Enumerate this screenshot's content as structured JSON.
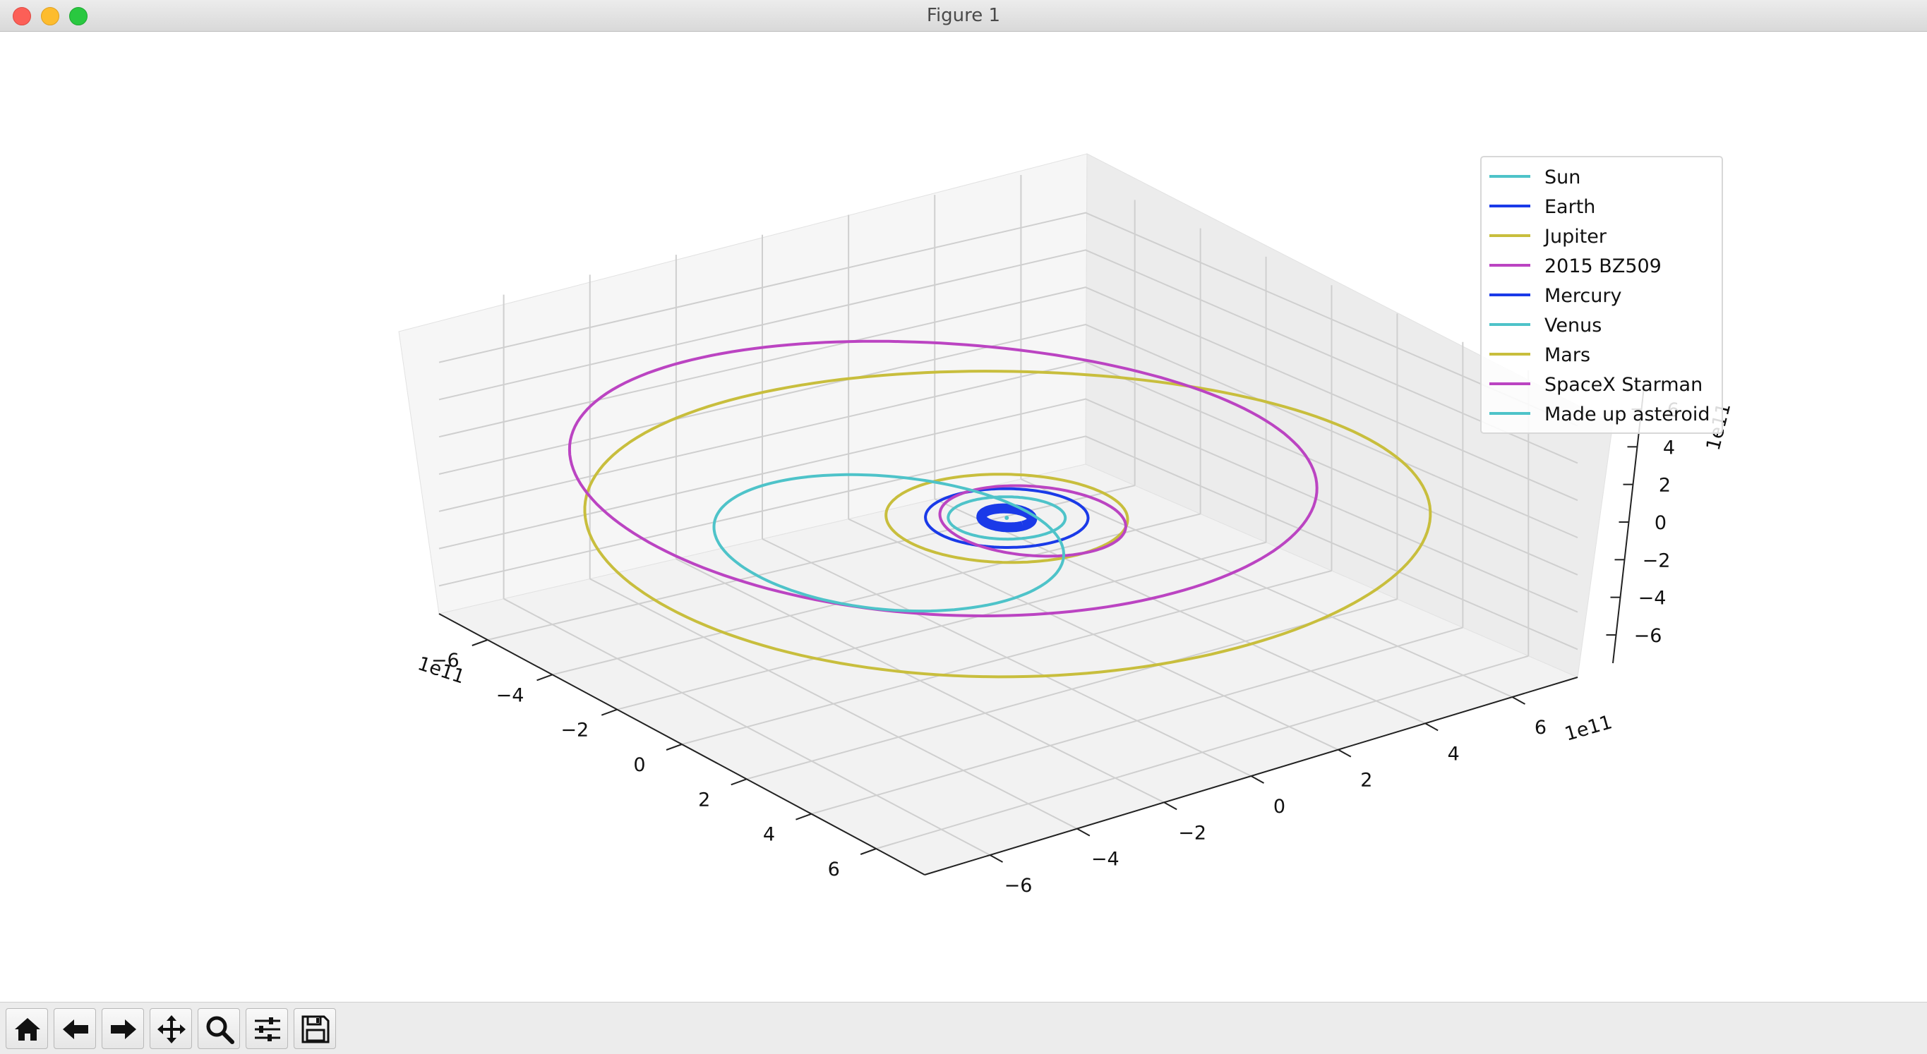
{
  "window": {
    "title": "Figure 1"
  },
  "chart_data": {
    "type": "line",
    "projection": "3d",
    "axis_offset": {
      "x": "1e11",
      "y": "1e11",
      "z": "1e11"
    },
    "x_ticks": [
      "−6",
      "−4",
      "−2",
      "0",
      "2",
      "4",
      "6"
    ],
    "y_ticks": [
      "−6",
      "−4",
      "−2",
      "0",
      "2",
      "4",
      "6"
    ],
    "z_ticks": [
      "−6",
      "−4",
      "−2",
      "0",
      "2",
      "4",
      "6"
    ],
    "xlim": [
      -7.5,
      7.5
    ],
    "ylim": [
      -7.5,
      7.5
    ],
    "zlim": [
      -7.5,
      7.5
    ],
    "grid": true,
    "legend_position": "top-right",
    "series": [
      {
        "name": "Sun",
        "color": "#4ec3c9",
        "orbit_radius_x": 0.0,
        "orbit_radius_y": 0.0,
        "center": [
          0,
          0
        ]
      },
      {
        "name": "Earth",
        "color": "#1a3ae8",
        "orbit_radius_x": 1.5,
        "orbit_radius_y": 1.5,
        "center": [
          0,
          0
        ]
      },
      {
        "name": "Jupiter",
        "color": "#c8be3d",
        "orbit_radius_x": 7.8,
        "orbit_radius_y": 7.8,
        "center": [
          0,
          0
        ]
      },
      {
        "name": "2015 BZ509",
        "color": "#bb44c2",
        "orbit_radius_x": 7.4,
        "orbit_radius_y": 6.6,
        "center": [
          -2.5,
          0.4
        ]
      },
      {
        "name": "Mercury",
        "color": "#1a3ae8",
        "orbit_radius_x": 0.5,
        "orbit_radius_y": 0.45,
        "center": [
          0,
          0
        ]
      },
      {
        "name": "Venus",
        "color": "#4ec3c9",
        "orbit_radius_x": 1.08,
        "orbit_radius_y": 1.08,
        "center": [
          0,
          0
        ]
      },
      {
        "name": "Mars",
        "color": "#c8be3d",
        "orbit_radius_x": 2.28,
        "orbit_radius_y": 2.2,
        "center": [
          0,
          0
        ]
      },
      {
        "name": "SpaceX Starman",
        "color": "#bb44c2",
        "orbit_radius_x": 1.9,
        "orbit_radius_y": 1.6,
        "center": [
          0.4,
          0.3
        ]
      },
      {
        "name": "Made up asteroid",
        "color": "#4ec3c9",
        "orbit_radius_x": 3.6,
        "orbit_radius_y": 3.0,
        "center": [
          -0.3,
          -2.5
        ]
      }
    ]
  },
  "toolbar": {
    "buttons": [
      {
        "id": "home",
        "icon": "home-icon"
      },
      {
        "id": "back",
        "icon": "arrow-left-icon"
      },
      {
        "id": "forward",
        "icon": "arrow-right-icon"
      },
      {
        "id": "pan",
        "icon": "move-icon"
      },
      {
        "id": "zoom",
        "icon": "magnifier-icon"
      },
      {
        "id": "configure",
        "icon": "sliders-icon"
      },
      {
        "id": "save",
        "icon": "floppy-icon"
      }
    ]
  }
}
